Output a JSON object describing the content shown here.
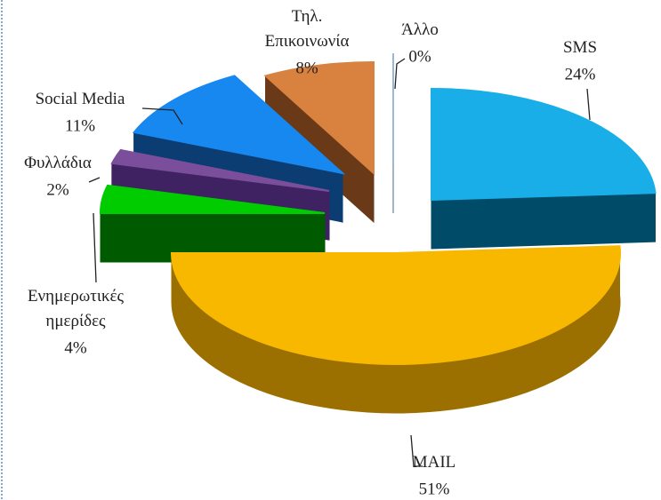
{
  "chart_data": {
    "type": "pie3d",
    "categories": [
      "SMS",
      "MAIL",
      "Ενημερωτικές\nημερίδες",
      "Φυλλάδια",
      "Social Media",
      "Τηλ.\nΕπικοινωνία",
      "Άλλο"
    ],
    "values": [
      24,
      51,
      4,
      2,
      11,
      8,
      0
    ],
    "value_labels": [
      "24%",
      "51%",
      "4%",
      "2%",
      "11%",
      "8%",
      "0%"
    ],
    "colors": [
      "#19aee8",
      "#f8b800",
      "#00cc00",
      "#7b4e9b",
      "#1688ef",
      "#d98240",
      "#9cb8d8"
    ],
    "side_colors": [
      "#004b68",
      "#9c7000",
      "#005a00",
      "#3e2262",
      "#0b3d72",
      "#6a3a18",
      "#4a6a8a"
    ]
  }
}
